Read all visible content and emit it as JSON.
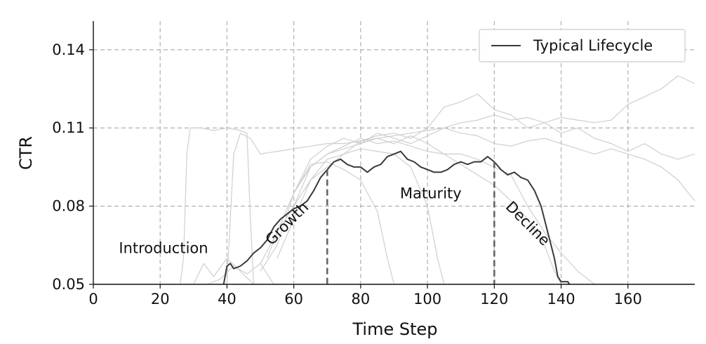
{
  "chart_data": {
    "type": "line",
    "title": "",
    "xlabel": "Time Step",
    "ylabel": "CTR",
    "xlim": [
      0,
      180
    ],
    "ylim": [
      0.05,
      0.151
    ],
    "xticks": [
      0,
      20,
      40,
      60,
      80,
      100,
      120,
      140,
      160
    ],
    "yticks": [
      0.05,
      0.08,
      0.11,
      0.14
    ],
    "xtick_labels": [
      "0",
      "20",
      "40",
      "60",
      "80",
      "100",
      "120",
      "140",
      "160"
    ],
    "ytick_labels": [
      "0.05",
      "0.08",
      "0.11",
      "0.14"
    ],
    "grid": true,
    "legend": {
      "position": "top-right",
      "entries": [
        "Typical Lifecycle"
      ]
    },
    "phases": [
      {
        "label": "Introduction",
        "x": 21,
        "y": 0.062
      },
      {
        "label": "Growth",
        "x": 59,
        "y": 0.072
      },
      {
        "label": "Maturity",
        "x": 101,
        "y": 0.083
      },
      {
        "label": "Decline",
        "x": 129,
        "y": 0.072
      }
    ],
    "phase_boundaries": [
      70,
      120
    ],
    "series": [
      {
        "name": "Typical Lifecycle",
        "color": "#3a3a3a",
        "x": [
          39,
          40,
          41,
          42,
          44,
          46,
          48,
          50,
          52,
          54,
          56,
          58,
          60,
          62,
          64,
          66,
          68,
          70,
          72,
          74,
          76,
          78,
          80,
          82,
          84,
          86,
          88,
          90,
          92,
          94,
          96,
          98,
          100,
          102,
          104,
          106,
          108,
          110,
          112,
          114,
          116,
          118,
          120,
          122,
          124,
          126,
          128,
          130,
          132,
          134,
          136,
          138,
          139,
          140,
          142,
          143
        ],
        "y": [
          0.05,
          0.057,
          0.058,
          0.056,
          0.057,
          0.059,
          0.062,
          0.064,
          0.067,
          0.072,
          0.075,
          0.077,
          0.079,
          0.08,
          0.082,
          0.086,
          0.091,
          0.094,
          0.097,
          0.098,
          0.096,
          0.095,
          0.095,
          0.093,
          0.095,
          0.096,
          0.099,
          0.1,
          0.101,
          0.098,
          0.097,
          0.095,
          0.094,
          0.093,
          0.093,
          0.094,
          0.096,
          0.097,
          0.096,
          0.097,
          0.097,
          0.099,
          0.097,
          0.094,
          0.092,
          0.093,
          0.091,
          0.09,
          0.086,
          0.08,
          0.07,
          0.06,
          0.053,
          0.051,
          0.051,
          0.049
        ]
      },
      {
        "color": "#cfcfcf",
        "x": [
          26,
          27,
          28,
          29,
          32,
          36,
          40,
          44,
          46,
          47,
          48
        ],
        "y": [
          0.05,
          0.06,
          0.1,
          0.11,
          0.11,
          0.109,
          0.11,
          0.109,
          0.108,
          0.075,
          0.05
        ]
      },
      {
        "color": "#cfcfcf",
        "x": [
          40,
          42,
          44,
          47,
          50,
          55,
          60,
          65,
          70,
          75,
          80,
          85,
          90,
          95,
          100,
          105,
          110,
          115,
          120,
          125,
          130,
          135,
          140,
          145,
          150,
          155,
          160,
          165,
          170,
          175,
          180
        ],
        "y": [
          0.05,
          0.1,
          0.108,
          0.106,
          0.1,
          0.101,
          0.102,
          0.103,
          0.104,
          0.104,
          0.105,
          0.106,
          0.107,
          0.108,
          0.109,
          0.11,
          0.112,
          0.113,
          0.115,
          0.113,
          0.114,
          0.112,
          0.114,
          0.113,
          0.112,
          0.113,
          0.119,
          0.122,
          0.125,
          0.13,
          0.127
        ]
      },
      {
        "color": "#cfcfcf",
        "x": [
          52,
          55,
          60,
          65,
          70,
          75,
          80,
          85,
          90,
          95,
          100,
          105,
          110,
          115,
          120,
          125,
          130,
          135,
          140,
          145,
          150,
          155,
          160,
          165,
          170,
          175,
          180
        ],
        "y": [
          0.06,
          0.07,
          0.08,
          0.09,
          0.095,
          0.1,
          0.105,
          0.107,
          0.108,
          0.106,
          0.11,
          0.118,
          0.12,
          0.123,
          0.117,
          0.115,
          0.11,
          0.112,
          0.108,
          0.11,
          0.106,
          0.104,
          0.101,
          0.104,
          0.1,
          0.098,
          0.1
        ]
      },
      {
        "color": "#cfcfcf",
        "x": [
          50,
          55,
          60,
          65,
          70,
          75,
          80,
          85,
          90,
          95,
          100,
          105,
          110,
          115,
          120,
          125,
          130,
          135,
          140,
          145,
          150,
          155,
          160,
          165,
          170,
          175,
          180
        ],
        "y": [
          0.055,
          0.065,
          0.085,
          0.098,
          0.103,
          0.106,
          0.104,
          0.108,
          0.106,
          0.104,
          0.107,
          0.11,
          0.108,
          0.107,
          0.104,
          0.103,
          0.105,
          0.106,
          0.104,
          0.102,
          0.1,
          0.102,
          0.1,
          0.098,
          0.095,
          0.09,
          0.082
        ]
      },
      {
        "color": "#cfcfcf",
        "x": [
          55,
          60,
          65,
          70,
          75,
          80,
          85,
          90,
          95,
          100,
          105,
          110,
          115,
          120,
          125,
          130,
          135,
          138,
          140
        ],
        "y": [
          0.07,
          0.085,
          0.095,
          0.1,
          0.102,
          0.104,
          0.106,
          0.104,
          0.107,
          0.104,
          0.1,
          0.096,
          0.092,
          0.088,
          0.082,
          0.075,
          0.065,
          0.055,
          0.05
        ]
      },
      {
        "color": "#cfcfcf",
        "x": [
          50,
          55,
          60,
          65,
          70,
          75,
          80,
          85,
          88,
          90
        ],
        "y": [
          0.058,
          0.07,
          0.085,
          0.096,
          0.097,
          0.094,
          0.09,
          0.078,
          0.06,
          0.05
        ]
      },
      {
        "color": "#cfcfcf",
        "x": [
          55,
          60,
          65,
          70,
          75,
          80,
          85,
          90,
          95,
          100,
          103,
          105
        ],
        "y": [
          0.06,
          0.075,
          0.09,
          0.098,
          0.1,
          0.102,
          0.101,
          0.1,
          0.095,
          0.08,
          0.06,
          0.05
        ]
      },
      {
        "color": "#cfcfcf",
        "x": [
          60,
          65,
          70,
          75,
          80,
          85,
          90,
          95,
          100,
          105,
          110,
          115,
          120,
          125,
          130,
          135,
          140,
          145,
          150
        ],
        "y": [
          0.08,
          0.095,
          0.1,
          0.103,
          0.106,
          0.104,
          0.105,
          0.103,
          0.101,
          0.1,
          0.1,
          0.098,
          0.095,
          0.092,
          0.08,
          0.07,
          0.062,
          0.055,
          0.05
        ]
      },
      {
        "color": "#cfcfcf",
        "x": [
          30,
          33,
          36,
          40,
          44,
          48
        ],
        "y": [
          0.05,
          0.058,
          0.053,
          0.06,
          0.055,
          0.05
        ]
      },
      {
        "color": "#cfcfcf",
        "x": [
          34,
          38,
          42,
          46,
          50,
          54
        ],
        "y": [
          0.05,
          0.052,
          0.057,
          0.054,
          0.058,
          0.05
        ]
      }
    ]
  }
}
